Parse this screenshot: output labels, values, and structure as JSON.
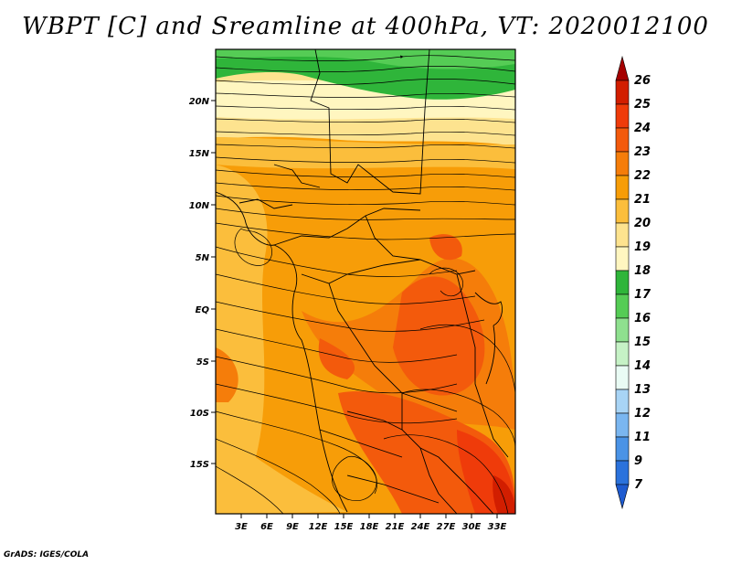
{
  "title": "WBPT [C] and Sreamline at 400hPa, VT: 2020012100",
  "credit": "GrADS: IGES/COLA",
  "axes": {
    "lon_labels": [
      "3E",
      "6E",
      "9E",
      "12E",
      "15E",
      "18E",
      "21E",
      "24E",
      "27E",
      "30E",
      "33E"
    ],
    "lat_labels": [
      "20N",
      "15N",
      "10N",
      "5N",
      "EQ",
      "5S",
      "10S",
      "15S"
    ]
  },
  "colorbar": {
    "levels": [
      "26",
      "25",
      "24",
      "23",
      "22",
      "21",
      "20",
      "19",
      "18",
      "17",
      "16",
      "15",
      "14",
      "13",
      "12",
      "11",
      "9",
      "7"
    ],
    "colors": [
      "#a50000",
      "#d21e00",
      "#ef3b0a",
      "#f35a0c",
      "#f57d0a",
      "#f79d08",
      "#fbbe3c",
      "#fde38f",
      "#fff6c0",
      "#2fb53a",
      "#55cc55",
      "#8fe08f",
      "#c6f2c6",
      "#e9fbf4",
      "#a8d4f5",
      "#7ab6f0",
      "#4a93e6",
      "#2b72dc",
      "#1e5bd0"
    ]
  }
}
